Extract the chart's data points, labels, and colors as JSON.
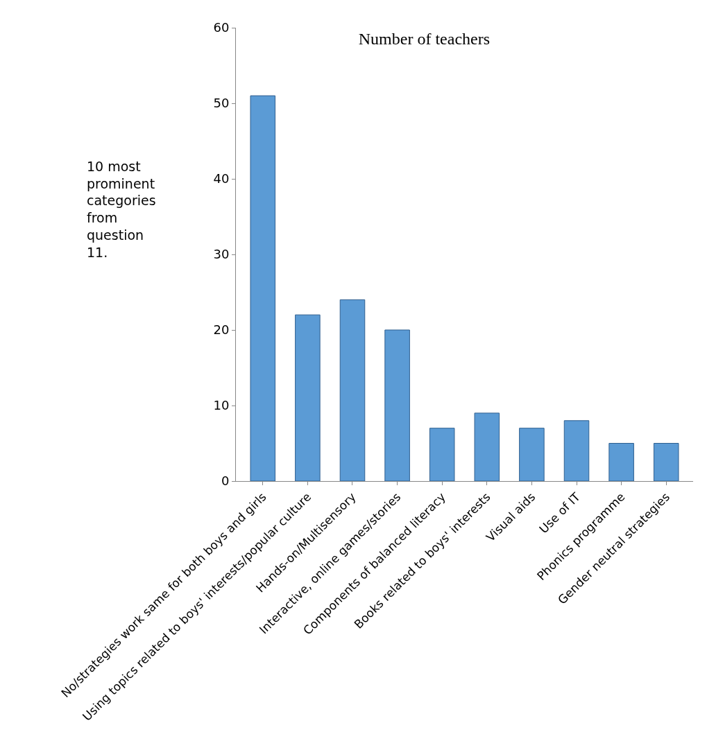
{
  "chart_data": {
    "type": "bar",
    "title": "Number of teachers",
    "ylabel": "10 most prominent categories from question 11.",
    "categories": [
      "No/strategies work same for both boys and girls",
      "Using topics related to boys' interests/popular culture",
      "Hands-on/Multisensory",
      "Interactive, online games/stories",
      "Components of balanced literacy",
      "Books related to boys' interests",
      "Visual aids",
      "Use of IT",
      "Phonics programme",
      "Gender neutral strategies"
    ],
    "values": [
      51,
      22,
      24,
      20,
      7,
      9,
      7,
      8,
      5,
      5
    ],
    "color": "#5b9bd5",
    "ylim": [
      0,
      60
    ],
    "yticks": [
      0,
      10,
      20,
      30,
      40,
      50,
      60
    ]
  }
}
